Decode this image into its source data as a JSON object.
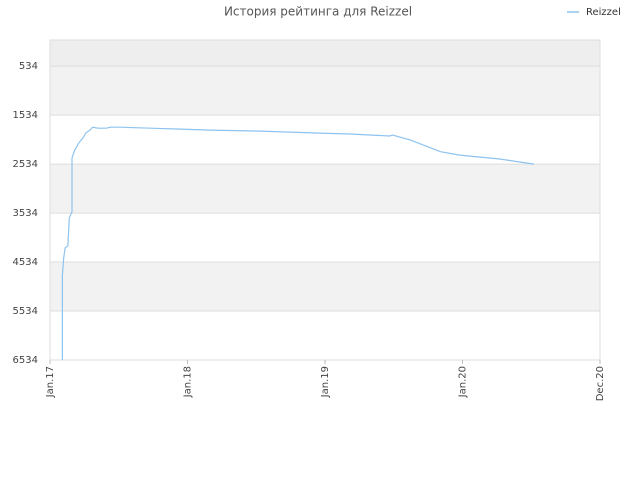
{
  "chart_data": {
    "type": "line",
    "title": "История рейтинга для Reizzel",
    "x": [
      2017.09,
      2017.09,
      2017.1,
      2017.11,
      2017.13,
      2017.14,
      2017.16,
      2017.16,
      2017.18,
      2017.21,
      2017.24,
      2017.26,
      2017.29,
      2017.31,
      2017.35,
      2017.41,
      2017.44,
      2017.51,
      2017.73,
      2017.95,
      2018.16,
      2018.53,
      2018.96,
      2019.18,
      2019.47,
      2019.49,
      2019.62,
      2019.84,
      2019.98,
      2020.27,
      2020.52
    ],
    "series": [
      {
        "name": "Reizzel",
        "color": "#8ec3ef",
        "values": [
          6534,
          4800,
          4450,
          4245,
          4200,
          3630,
          3510,
          2410,
          2245,
          2100,
          2000,
          1900,
          1840,
          1780,
          1800,
          1800,
          1780,
          1780,
          1800,
          1820,
          1840,
          1860,
          1900,
          1920,
          1960,
          1940,
          2040,
          2280,
          2350,
          2430,
          2534
        ]
      }
    ],
    "xlim": [
      2017,
      2021
    ],
    "xticks": [
      {
        "value": 2017,
        "label": "Jan.17"
      },
      {
        "value": 2018,
        "label": "Jan.18"
      },
      {
        "value": 2019,
        "label": "Jan.19"
      },
      {
        "value": 2020,
        "label": "Jan.20"
      },
      {
        "value": 2021,
        "label": "Dec.20"
      }
    ],
    "ylim": [
      6534,
      0
    ],
    "yticks": [
      534,
      1534,
      2534,
      3534,
      4534,
      5534,
      6534
    ],
    "grid": true,
    "legend": "top-right"
  }
}
